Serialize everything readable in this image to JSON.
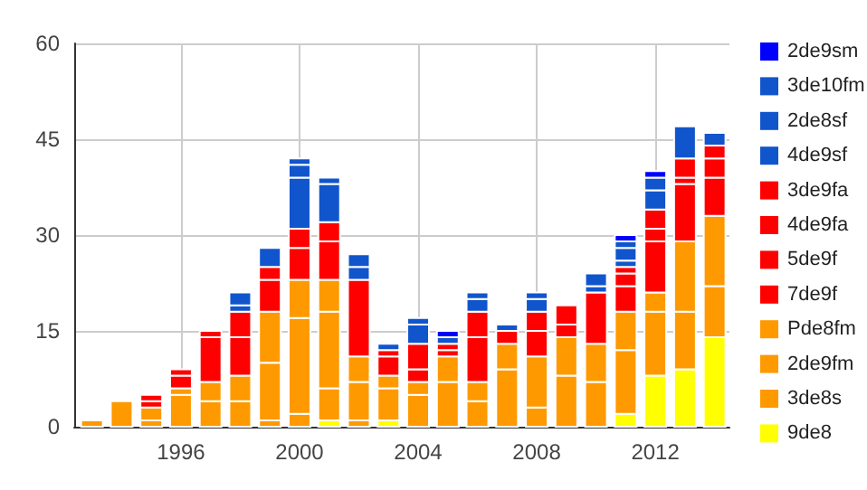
{
  "chart_data": {
    "type": "bar",
    "stacked": true,
    "x": [
      1993,
      1994,
      1995,
      1996,
      1997,
      1998,
      1999,
      2000,
      2001,
      2002,
      2003,
      2004,
      2005,
      2006,
      2007,
      2008,
      2009,
      2010,
      2011,
      2012,
      2013,
      2014
    ],
    "series": [
      {
        "name": "9de8",
        "color": "#ffff00",
        "values": [
          0,
          0,
          0,
          0,
          0,
          0,
          0,
          0,
          1,
          0,
          1,
          0,
          0,
          0,
          0,
          0,
          0,
          0,
          2,
          8,
          9,
          14
        ]
      },
      {
        "name": "3de8s",
        "color": "#ff9900",
        "values": [
          1,
          4,
          1,
          5,
          4,
          4,
          1,
          2,
          5,
          1,
          5,
          5,
          7,
          4,
          9,
          3,
          8,
          7,
          10,
          10,
          9,
          8
        ]
      },
      {
        "name": "2de9fm",
        "color": "#ff9900",
        "values": [
          0,
          0,
          2,
          1,
          3,
          4,
          9,
          15,
          12,
          6,
          2,
          2,
          4,
          3,
          4,
          8,
          6,
          6,
          6,
          3,
          11,
          11
        ]
      },
      {
        "name": "Pde8fm",
        "color": "#ff9900",
        "values": [
          0,
          0,
          0,
          0,
          0,
          0,
          8,
          6,
          5,
          4,
          0,
          0,
          0,
          0,
          0,
          0,
          0,
          0,
          0,
          0,
          0,
          0
        ]
      },
      {
        "name": "7de9f",
        "color": "#ff0000",
        "values": [
          0,
          0,
          1,
          2,
          7,
          6,
          5,
          5,
          6,
          12,
          3,
          2,
          1,
          7,
          2,
          4,
          2,
          8,
          4,
          8,
          9,
          6
        ]
      },
      {
        "name": "5de9f",
        "color": "#ff0000",
        "values": [
          0,
          0,
          1,
          1,
          1,
          4,
          2,
          3,
          3,
          0,
          1,
          4,
          1,
          4,
          0,
          3,
          3,
          0,
          2,
          2,
          1,
          3
        ]
      },
      {
        "name": "4de9fa",
        "color": "#ff0000",
        "values": [
          0,
          0,
          0,
          0,
          0,
          0,
          0,
          0,
          0,
          0,
          0,
          0,
          0,
          0,
          0,
          0,
          0,
          0,
          1,
          3,
          3,
          2
        ]
      },
      {
        "name": "3de9fa",
        "color": "#ff0000",
        "values": [
          0,
          0,
          0,
          0,
          0,
          0,
          0,
          0,
          0,
          0,
          0,
          0,
          0,
          0,
          0,
          0,
          0,
          0,
          0,
          0,
          0,
          0
        ]
      },
      {
        "name": "4de9sf",
        "color": "#1155cc",
        "values": [
          0,
          0,
          0,
          0,
          0,
          1,
          3,
          8,
          6,
          2,
          1,
          3,
          1,
          2,
          1,
          2,
          0,
          1,
          1,
          3,
          5,
          2
        ]
      },
      {
        "name": "2de8sf",
        "color": "#1155cc",
        "values": [
          0,
          0,
          0,
          0,
          0,
          2,
          0,
          2,
          1,
          2,
          0,
          1,
          0,
          1,
          0,
          1,
          0,
          2,
          2,
          2,
          0,
          0
        ]
      },
      {
        "name": "3de10fm",
        "color": "#1155cc",
        "values": [
          0,
          0,
          0,
          0,
          0,
          0,
          0,
          1,
          0,
          0,
          0,
          0,
          0,
          0,
          0,
          0,
          0,
          0,
          1,
          0,
          0,
          0
        ]
      },
      {
        "name": "2de9sm",
        "color": "#0000ff",
        "values": [
          0,
          0,
          0,
          0,
          0,
          0,
          0,
          0,
          0,
          0,
          0,
          0,
          1,
          0,
          0,
          0,
          0,
          0,
          1,
          1,
          0,
          0
        ]
      }
    ],
    "xlim": [
      1992.4,
      2014.5
    ],
    "xticks": [
      1996,
      2000,
      2004,
      2008,
      2012
    ],
    "ylim": [
      0,
      60
    ],
    "yticks": [
      0,
      15,
      30,
      45,
      60
    ],
    "grid": true,
    "legend": "right"
  }
}
